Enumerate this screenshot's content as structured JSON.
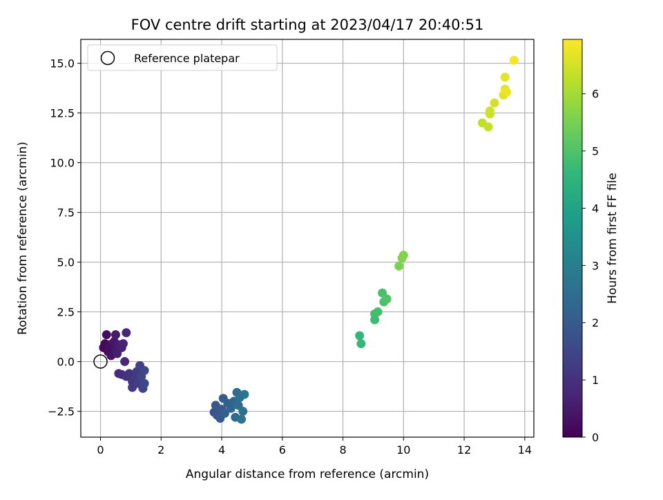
{
  "chart_data": {
    "type": "scatter",
    "title": "FOV centre drift starting at 2023/04/17 20:40:51",
    "xlabel": "Angular distance from reference (arcmin)",
    "ylabel": "Rotation from reference (arcmin)",
    "colorbar_label": "Hours from first FF file",
    "colormap": "viridis",
    "colormap_stops": [
      "#440154",
      "#482878",
      "#3e4989",
      "#31688e",
      "#26828e",
      "#1f9e89",
      "#35b779",
      "#6ece58",
      "#b5de2b",
      "#fde725"
    ],
    "xlim": [
      -0.65,
      14.3
    ],
    "ylim": [
      -3.8,
      16.2
    ],
    "clim": [
      0,
      6.95
    ],
    "x_ticks": [
      "0",
      "2",
      "4",
      "6",
      "8",
      "10",
      "12",
      "14"
    ],
    "x_tick_values": [
      0,
      2,
      4,
      6,
      8,
      10,
      12,
      14
    ],
    "y_ticks": [
      "−2.5",
      "0.0",
      "2.5",
      "5.0",
      "7.5",
      "10.0",
      "12.5",
      "15.0"
    ],
    "y_tick_values": [
      -2.5,
      0,
      2.5,
      5,
      7.5,
      10,
      12.5,
      15
    ],
    "colorbar_ticks": [
      "0",
      "1",
      "2",
      "3",
      "4",
      "5",
      "6"
    ],
    "colorbar_tick_values": [
      0,
      1,
      2,
      3,
      4,
      5,
      6
    ],
    "grid": true,
    "legend": {
      "position": "top-left",
      "entries": [
        "Reference platepar"
      ]
    },
    "reference_point": {
      "x": 0,
      "y": 0
    },
    "points": [
      {
        "x": 0.1,
        "y": 0.7,
        "t": 0.1
      },
      {
        "x": 0.15,
        "y": 0.9,
        "t": 0.15
      },
      {
        "x": 0.2,
        "y": 1.35,
        "t": 0.2
      },
      {
        "x": 0.25,
        "y": 0.5,
        "t": 0.25
      },
      {
        "x": 0.3,
        "y": 0.85,
        "t": 0.3
      },
      {
        "x": 0.35,
        "y": 0.3,
        "t": 0.35
      },
      {
        "x": 0.45,
        "y": 1.0,
        "t": 0.4
      },
      {
        "x": 0.5,
        "y": 0.6,
        "t": 0.45
      },
      {
        "x": 0.5,
        "y": 1.35,
        "t": 0.5
      },
      {
        "x": 0.55,
        "y": 0.4,
        "t": 0.55
      },
      {
        "x": 0.6,
        "y": 0.85,
        "t": 0.6
      },
      {
        "x": 0.7,
        "y": 0.7,
        "t": 0.65
      },
      {
        "x": 0.75,
        "y": 0.9,
        "t": 0.7
      },
      {
        "x": 0.85,
        "y": 1.45,
        "t": 0.75
      },
      {
        "x": 0.8,
        "y": 0.0,
        "t": 0.8
      },
      {
        "x": 0.6,
        "y": -0.6,
        "t": 0.85
      },
      {
        "x": 0.7,
        "y": -0.65,
        "t": 0.9
      },
      {
        "x": 0.85,
        "y": -0.75,
        "t": 1.0
      },
      {
        "x": 0.95,
        "y": -0.6,
        "t": 1.05
      },
      {
        "x": 1.05,
        "y": -1.0,
        "t": 1.1
      },
      {
        "x": 1.05,
        "y": -1.3,
        "t": 1.15
      },
      {
        "x": 1.15,
        "y": -0.85,
        "t": 1.2
      },
      {
        "x": 1.2,
        "y": -0.5,
        "t": 1.25
      },
      {
        "x": 1.25,
        "y": -1.1,
        "t": 1.3
      },
      {
        "x": 1.3,
        "y": -0.2,
        "t": 1.35
      },
      {
        "x": 1.35,
        "y": -0.75,
        "t": 1.4
      },
      {
        "x": 1.4,
        "y": -1.35,
        "t": 1.45
      },
      {
        "x": 1.45,
        "y": -0.45,
        "t": 1.5
      },
      {
        "x": 1.45,
        "y": -1.1,
        "t": 1.55
      },
      {
        "x": 3.75,
        "y": -2.55,
        "t": 1.8
      },
      {
        "x": 3.8,
        "y": -2.2,
        "t": 1.85
      },
      {
        "x": 3.85,
        "y": -2.7,
        "t": 1.9
      },
      {
        "x": 3.95,
        "y": -2.85,
        "t": 1.95
      },
      {
        "x": 4.0,
        "y": -2.4,
        "t": 2.0
      },
      {
        "x": 4.05,
        "y": -1.85,
        "t": 2.05
      },
      {
        "x": 4.1,
        "y": -2.6,
        "t": 2.1
      },
      {
        "x": 4.2,
        "y": -2.1,
        "t": 2.2
      },
      {
        "x": 4.3,
        "y": -2.35,
        "t": 2.25
      },
      {
        "x": 4.4,
        "y": -2.0,
        "t": 2.3
      },
      {
        "x": 4.45,
        "y": -2.8,
        "t": 2.4
      },
      {
        "x": 4.5,
        "y": -1.55,
        "t": 2.45
      },
      {
        "x": 4.55,
        "y": -2.2,
        "t": 2.5
      },
      {
        "x": 4.6,
        "y": -1.8,
        "t": 2.55
      },
      {
        "x": 4.65,
        "y": -2.9,
        "t": 2.6
      },
      {
        "x": 4.7,
        "y": -2.5,
        "t": 2.65
      },
      {
        "x": 4.75,
        "y": -1.65,
        "t": 2.7
      },
      {
        "x": 8.55,
        "y": 1.3,
        "t": 4.6
      },
      {
        "x": 8.6,
        "y": 0.9,
        "t": 4.65
      },
      {
        "x": 9.05,
        "y": 2.1,
        "t": 4.75
      },
      {
        "x": 9.05,
        "y": 2.4,
        "t": 4.8
      },
      {
        "x": 9.15,
        "y": 2.5,
        "t": 4.85
      },
      {
        "x": 9.3,
        "y": 3.45,
        "t": 4.9
      },
      {
        "x": 9.35,
        "y": 3.0,
        "t": 4.95
      },
      {
        "x": 9.45,
        "y": 3.15,
        "t": 5.0
      },
      {
        "x": 9.85,
        "y": 4.8,
        "t": 5.55
      },
      {
        "x": 9.95,
        "y": 5.2,
        "t": 5.6
      },
      {
        "x": 10.0,
        "y": 5.35,
        "t": 5.65
      },
      {
        "x": 12.6,
        "y": 12.0,
        "t": 6.3
      },
      {
        "x": 12.8,
        "y": 11.8,
        "t": 6.35
      },
      {
        "x": 12.85,
        "y": 12.45,
        "t": 6.4
      },
      {
        "x": 12.85,
        "y": 12.6,
        "t": 6.45
      },
      {
        "x": 13.0,
        "y": 13.0,
        "t": 6.5
      },
      {
        "x": 13.3,
        "y": 13.4,
        "t": 6.6
      },
      {
        "x": 13.35,
        "y": 13.7,
        "t": 6.65
      },
      {
        "x": 13.35,
        "y": 14.3,
        "t": 6.7
      },
      {
        "x": 13.4,
        "y": 13.55,
        "t": 6.75
      },
      {
        "x": 13.65,
        "y": 15.15,
        "t": 6.85
      }
    ]
  }
}
